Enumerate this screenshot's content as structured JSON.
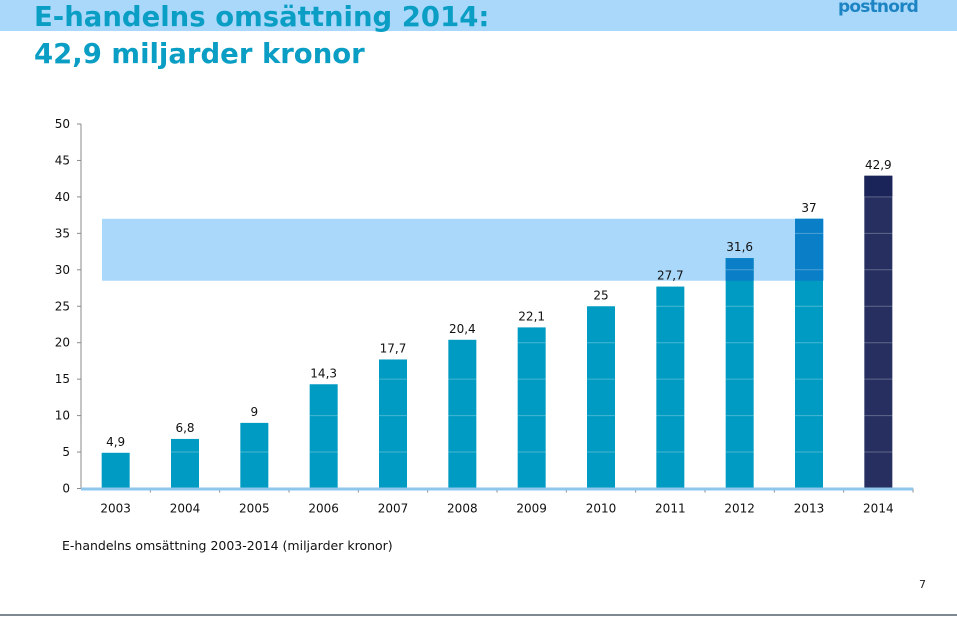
{
  "header": {
    "title_line1": "E-handelns omsättning 2014:",
    "title_line2": "42,9 miljarder kronor",
    "logo": "postnord"
  },
  "footer": {
    "caption": "E-handelns omsättning 2003-2014 (miljarder kronor)",
    "page_number": "7"
  },
  "colors": {
    "title": "#0a9ec4",
    "band": "#a9d8fb",
    "bar": "#009bc2",
    "bar_highlight": "#0a7ec6",
    "bar_2014": "#262f60",
    "bar_2014_top": "#1a2458",
    "logo": "#1d84c3"
  },
  "chart_data": {
    "type": "bar",
    "title": "",
    "xlabel": "",
    "ylabel": "",
    "categories": [
      "2003",
      "2004",
      "2005",
      "2006",
      "2007",
      "2008",
      "2009",
      "2010",
      "2011",
      "2012",
      "2013",
      "2014"
    ],
    "values": [
      4.9,
      6.8,
      9,
      14.3,
      17.7,
      20.4,
      22.1,
      25,
      27.7,
      31.6,
      37,
      42.9
    ],
    "value_labels": [
      "4,9",
      "6,8",
      "9",
      "14,3",
      "17,7",
      "20,4",
      "22,1",
      "25",
      "27,7",
      "31,6",
      "37",
      "42,9"
    ],
    "ylim": [
      0,
      50
    ],
    "yticks": [
      0,
      5,
      10,
      15,
      20,
      25,
      30,
      35,
      40,
      45,
      50
    ],
    "highlight_band": [
      28.5,
      37
    ],
    "gridlines": false,
    "legend": "none"
  }
}
